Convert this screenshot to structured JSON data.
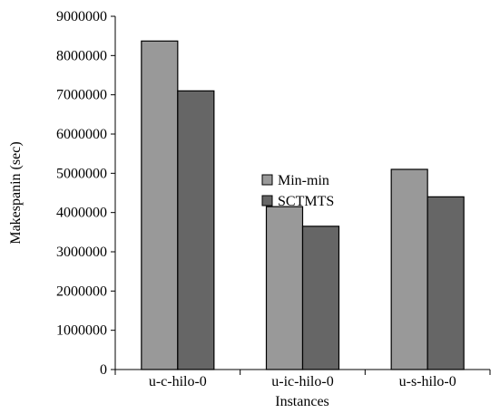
{
  "chart_data": {
    "type": "bar",
    "title": "",
    "xlabel": "Instances",
    "ylabel": "Makespanin (sec)",
    "categories": [
      "u-c-hilo-0",
      "u-ic-hilo-0",
      "u-s-hilo-0"
    ],
    "series": [
      {
        "name": "Min-min",
        "values": [
          8370000,
          4150000,
          5100000
        ],
        "color": "#999999"
      },
      {
        "name": "SCTMTS",
        "values": [
          7100000,
          3650000,
          4400000
        ],
        "color": "#666666"
      }
    ],
    "ylim": [
      0,
      9000000
    ],
    "yticks": [
      0,
      1000000,
      2000000,
      3000000,
      4000000,
      5000000,
      6000000,
      7000000,
      8000000,
      9000000
    ],
    "ytick_labels": [
      "0",
      "1000000",
      "2000000",
      "3000000",
      "4000000",
      "5000000",
      "6000000",
      "7000000",
      "8000000",
      "9000000"
    ],
    "grid": false,
    "legend_position": "center"
  }
}
